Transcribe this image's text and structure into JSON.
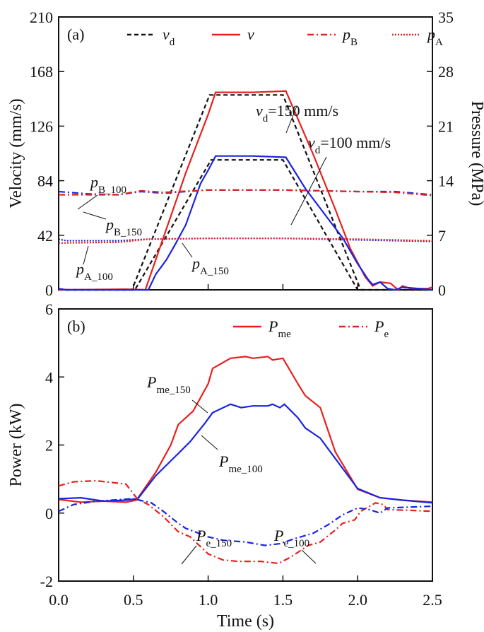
{
  "colors": {
    "red": "#e8201e",
    "blue": "#1a23e0",
    "black": "#111111"
  },
  "chart_data": [
    {
      "type": "line",
      "panel": "(a)",
      "xlabel": "",
      "ylabel": "Velocity (mm/s)",
      "y2label": "Pressure (MPa)",
      "xlim": [
        0,
        2.5
      ],
      "ylim": [
        0,
        210
      ],
      "y2lim": [
        0,
        35
      ],
      "xticks": [
        0,
        0.5,
        1,
        1.5,
        2,
        2.5
      ],
      "yticks": [
        "0",
        "42",
        "84",
        "126",
        "168",
        "210"
      ],
      "y2ticks": [
        "0",
        "7",
        "14",
        "21",
        "28",
        "35"
      ],
      "legend": [
        {
          "main": "v",
          "sub": "d",
          "style": "dashed",
          "color": "#111111"
        },
        {
          "main": "v",
          "sub": "",
          "style": "solid",
          "color": "#e8201e"
        },
        {
          "main": "p",
          "sub": "B",
          "style": "dashdot",
          "color": "#e8201e"
        },
        {
          "main": "p",
          "sub": "A",
          "style": "dotted",
          "color": "#e8201e"
        }
      ],
      "annotations": [
        {
          "main": "v",
          "sub": "d",
          "rest": "=150 mm/s"
        },
        {
          "main": "v",
          "sub": "d",
          "rest": "=100 mm/s"
        },
        {
          "main": "p",
          "sub": "B_100"
        },
        {
          "main": "p",
          "sub": "B_150"
        },
        {
          "main": "p",
          "sub": "A_100"
        },
        {
          "main": "p",
          "sub": "A_150"
        }
      ],
      "series": [
        {
          "name": "vd_150",
          "axis": "left",
          "style": "dashed",
          "color": "#111111",
          "points": [
            [
              0,
              0
            ],
            [
              0.49,
              0
            ],
            [
              1.01,
              150
            ],
            [
              1.5,
              150
            ],
            [
              2.02,
              0
            ],
            [
              2.5,
              0
            ]
          ]
        },
        {
          "name": "vd_100",
          "axis": "left",
          "style": "dashed",
          "color": "#111111",
          "points": [
            [
              0,
              0
            ],
            [
              0.51,
              0
            ],
            [
              1.02,
              100
            ],
            [
              1.5,
              100
            ],
            [
              2.0,
              0
            ],
            [
              2.5,
              0
            ]
          ]
        },
        {
          "name": "v_150",
          "axis": "left",
          "style": "solid",
          "color": "#e8201e",
          "points": [
            [
              0,
              0
            ],
            [
              0.45,
              0.5
            ],
            [
              0.58,
              0
            ],
            [
              0.7,
              40
            ],
            [
              0.85,
              90
            ],
            [
              1.0,
              135
            ],
            [
              1.05,
              152
            ],
            [
              1.3,
              152
            ],
            [
              1.52,
              153
            ],
            [
              1.7,
              105
            ],
            [
              1.85,
              62
            ],
            [
              1.95,
              32
            ],
            [
              2.05,
              10
            ],
            [
              2.1,
              3
            ],
            [
              2.15,
              6
            ],
            [
              2.22,
              5
            ],
            [
              2.27,
              0
            ],
            [
              2.3,
              3
            ],
            [
              2.35,
              1
            ],
            [
              2.47,
              1
            ],
            [
              2.5,
              2
            ]
          ]
        },
        {
          "name": "v_100",
          "axis": "left",
          "style": "solid",
          "color": "#1a23e0",
          "points": [
            [
              0,
              1
            ],
            [
              0.05,
              0
            ],
            [
              0.6,
              0
            ],
            [
              0.65,
              12
            ],
            [
              0.72,
              23
            ],
            [
              0.78,
              35
            ],
            [
              0.85,
              50
            ],
            [
              0.95,
              82
            ],
            [
              1.0,
              92
            ],
            [
              1.05,
              103
            ],
            [
              1.3,
              103
            ],
            [
              1.52,
              102
            ],
            [
              1.65,
              78
            ],
            [
              1.8,
              55
            ],
            [
              1.9,
              40
            ],
            [
              2.0,
              20
            ],
            [
              2.07,
              8
            ],
            [
              2.1,
              4
            ],
            [
              2.15,
              6
            ],
            [
              2.2,
              1
            ],
            [
              2.25,
              0
            ],
            [
              2.3,
              2
            ],
            [
              2.5,
              0
            ]
          ]
        },
        {
          "name": "pB_100",
          "axis": "right",
          "style": "dashdot",
          "color": "#1a23e0",
          "points": [
            [
              0,
              12.6
            ],
            [
              0.2,
              12.3
            ],
            [
              0.4,
              12.2
            ],
            [
              0.55,
              12.6
            ],
            [
              0.7,
              12.4
            ],
            [
              1.0,
              12.8
            ],
            [
              1.5,
              12.8
            ],
            [
              2.0,
              12.6
            ],
            [
              2.25,
              12.6
            ],
            [
              2.5,
              12.2
            ]
          ]
        },
        {
          "name": "pB_150",
          "axis": "right",
          "style": "dashdot",
          "color": "#e8201e",
          "points": [
            [
              0,
              12.2
            ],
            [
              0.4,
              12.2
            ],
            [
              0.55,
              12.7
            ],
            [
              0.7,
              12.5
            ],
            [
              1.0,
              12.8
            ],
            [
              1.5,
              12.8
            ],
            [
              2.0,
              12.6
            ],
            [
              2.25,
              12.5
            ],
            [
              2.5,
              12.1
            ]
          ]
        },
        {
          "name": "pA_100",
          "axis": "right",
          "style": "dotted",
          "color": "#1a23e0",
          "points": [
            [
              0,
              6.5
            ],
            [
              0.05,
              6.3
            ],
            [
              0.4,
              6.3
            ],
            [
              0.6,
              6.5
            ],
            [
              1.0,
              6.6
            ],
            [
              1.5,
              6.6
            ],
            [
              2.0,
              6.4
            ],
            [
              2.5,
              6.2
            ]
          ]
        },
        {
          "name": "pA_150",
          "axis": "right",
          "style": "dotted",
          "color": "#e8201e",
          "points": [
            [
              0,
              6.0
            ],
            [
              0.4,
              6.1
            ],
            [
              0.6,
              6.5
            ],
            [
              1.0,
              6.6
            ],
            [
              1.5,
              6.6
            ],
            [
              2.0,
              6.5
            ],
            [
              2.5,
              6.3
            ]
          ]
        }
      ]
    },
    {
      "type": "line",
      "panel": "(b)",
      "xlabel": "Time (s)",
      "ylabel": "Power (kW)",
      "xlim": [
        0,
        2.5
      ],
      "ylim": [
        -2,
        6
      ],
      "xticks": [
        "0.0",
        "0.5",
        "1.0",
        "1.5",
        "2.0",
        "2.5"
      ],
      "yticks": [
        "-2",
        "0",
        "2",
        "4",
        "6"
      ],
      "legend": [
        {
          "main": "P",
          "sub": "me",
          "style": "solid",
          "color": "#e8201e"
        },
        {
          "main": "P",
          "sub": "e",
          "style": "dashdot",
          "color": "#e8201e"
        }
      ],
      "annotations": [
        {
          "main": "P",
          "sub": "me_150"
        },
        {
          "main": "P",
          "sub": "me_100"
        },
        {
          "main": "P",
          "sub": "e_150"
        },
        {
          "main": "P",
          "sub": "e_100"
        }
      ],
      "series": [
        {
          "name": "Pme_150",
          "style": "solid",
          "color": "#e8201e",
          "points": [
            [
              0,
              0.4
            ],
            [
              0.15,
              0.32
            ],
            [
              0.3,
              0.35
            ],
            [
              0.45,
              0.32
            ],
            [
              0.52,
              0.38
            ],
            [
              0.65,
              1.2
            ],
            [
              0.75,
              2.0
            ],
            [
              0.8,
              2.6
            ],
            [
              0.9,
              3.0
            ],
            [
              1.0,
              3.8
            ],
            [
              1.03,
              4.25
            ],
            [
              1.15,
              4.55
            ],
            [
              1.25,
              4.6
            ],
            [
              1.3,
              4.55
            ],
            [
              1.4,
              4.6
            ],
            [
              1.43,
              4.5
            ],
            [
              1.5,
              4.55
            ],
            [
              1.6,
              3.8
            ],
            [
              1.65,
              3.45
            ],
            [
              1.75,
              3.1
            ],
            [
              1.85,
              1.8
            ],
            [
              2.0,
              0.7
            ],
            [
              2.15,
              0.45
            ],
            [
              2.3,
              0.38
            ],
            [
              2.5,
              0.32
            ]
          ]
        },
        {
          "name": "Pme_100",
          "style": "solid",
          "color": "#1a23e0",
          "points": [
            [
              0,
              0.42
            ],
            [
              0.15,
              0.45
            ],
            [
              0.3,
              0.35
            ],
            [
              0.45,
              0.38
            ],
            [
              0.53,
              0.42
            ],
            [
              0.65,
              1.1
            ],
            [
              0.8,
              1.75
            ],
            [
              0.88,
              2.1
            ],
            [
              0.98,
              2.65
            ],
            [
              1.03,
              2.95
            ],
            [
              1.15,
              3.2
            ],
            [
              1.22,
              3.1
            ],
            [
              1.3,
              3.15
            ],
            [
              1.4,
              3.15
            ],
            [
              1.43,
              3.2
            ],
            [
              1.48,
              3.1
            ],
            [
              1.51,
              3.2
            ],
            [
              1.6,
              2.8
            ],
            [
              1.65,
              2.5
            ],
            [
              1.75,
              2.2
            ],
            [
              1.8,
              1.9
            ],
            [
              2.0,
              0.72
            ],
            [
              2.15,
              0.45
            ],
            [
              2.3,
              0.38
            ],
            [
              2.5,
              0.3
            ]
          ]
        },
        {
          "name": "Pe_150",
          "style": "dashdot",
          "color": "#e8201e",
          "points": [
            [
              0,
              0.8
            ],
            [
              0.1,
              0.92
            ],
            [
              0.25,
              0.95
            ],
            [
              0.45,
              0.85
            ],
            [
              0.53,
              0.4
            ],
            [
              0.6,
              0.25
            ],
            [
              0.7,
              -0.1
            ],
            [
              0.8,
              -0.55
            ],
            [
              0.88,
              -0.7
            ],
            [
              1.0,
              -1.2
            ],
            [
              1.1,
              -1.38
            ],
            [
              1.2,
              -1.42
            ],
            [
              1.35,
              -1.42
            ],
            [
              1.47,
              -1.48
            ],
            [
              1.55,
              -1.3
            ],
            [
              1.67,
              -0.95
            ],
            [
              1.75,
              -0.85
            ],
            [
              1.85,
              -0.5
            ],
            [
              1.9,
              -0.3
            ],
            [
              1.98,
              -0.2
            ],
            [
              2.02,
              0.05
            ],
            [
              2.12,
              0.3
            ],
            [
              2.17,
              0.25
            ],
            [
              2.2,
              0.1
            ],
            [
              2.35,
              0.08
            ],
            [
              2.5,
              0.05
            ]
          ]
        },
        {
          "name": "Pe_100",
          "style": "dashdot",
          "color": "#1a23e0",
          "points": [
            [
              0,
              0.05
            ],
            [
              0.1,
              0.25
            ],
            [
              0.25,
              0.35
            ],
            [
              0.5,
              0.42
            ],
            [
              0.62,
              0.3
            ],
            [
              0.7,
              0.05
            ],
            [
              0.8,
              -0.3
            ],
            [
              0.85,
              -0.45
            ],
            [
              1.0,
              -0.7
            ],
            [
              1.1,
              -0.8
            ],
            [
              1.25,
              -0.85
            ],
            [
              1.38,
              -0.95
            ],
            [
              1.48,
              -0.9
            ],
            [
              1.58,
              -0.75
            ],
            [
              1.7,
              -0.6
            ],
            [
              1.8,
              -0.35
            ],
            [
              1.9,
              -0.05
            ],
            [
              2.0,
              0.15
            ],
            [
              2.08,
              0.1
            ],
            [
              2.15,
              0.0
            ],
            [
              2.2,
              0.15
            ],
            [
              2.5,
              0.2
            ]
          ]
        }
      ]
    }
  ]
}
